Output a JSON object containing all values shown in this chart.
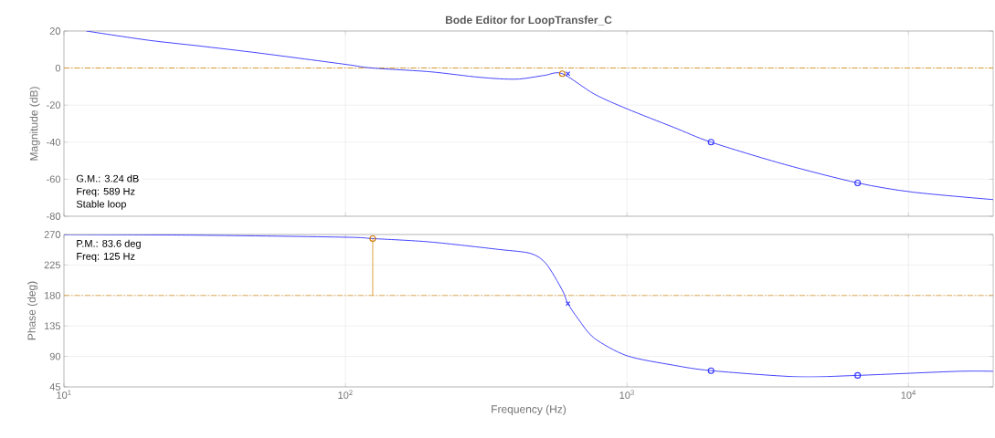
{
  "chart_data": [
    {
      "type": "line",
      "title": "Bode Editor for LoopTransfer_C",
      "ylabel": "Magnitude (dB)",
      "log": "x",
      "grid": true,
      "tick_labels": "y",
      "xlim": [
        10,
        20000
      ],
      "xticks": [
        {
          "value": 10,
          "label": null
        },
        {
          "value": 100,
          "label": null
        },
        {
          "value": 1000,
          "label": null
        },
        {
          "value": 10000,
          "label": null
        }
      ],
      "ylim": [
        -80,
        20
      ],
      "yticks": [
        -80,
        -60,
        -40,
        -20,
        0,
        20
      ],
      "series": [
        {
          "color": "#3030ff",
          "marker": "none",
          "x": [
            12,
            20,
            30,
            50,
            100,
            125,
            200,
            300,
            404,
            507,
            589,
            765,
            1000,
            1466,
            1990,
            3630,
            6600,
            10400,
            20000
          ],
          "values": [
            20,
            15,
            12,
            8,
            2,
            0,
            -2,
            -5,
            -6,
            -4,
            -3,
            -14,
            -22,
            -32,
            -40,
            -52,
            -62,
            -67,
            -71
          ]
        },
        {
          "type": "scatter",
          "color": "#3030ff",
          "marker": "circle",
          "x": [
            1990,
            6600
          ],
          "values": [
            -40,
            -62
          ]
        },
        {
          "type": "scatter",
          "color": "#3030ff",
          "marker": "cross",
          "x": [
            617
          ],
          "values": [
            -3
          ]
        },
        {
          "type": "scatter",
          "color": "#cc7a00",
          "marker": "circle",
          "x": [
            589
          ],
          "values": [
            -3
          ]
        }
      ],
      "ref_lines": [
        {
          "axis": "y",
          "value": 0,
          "color": "#d99a30",
          "line_style": "dashdot"
        }
      ],
      "annotations": [
        "G.M.: 3.24 dB",
        "Freq: 589 Hz",
        "Stable loop"
      ]
    },
    {
      "type": "line",
      "xlabel": "Frequency (Hz)",
      "ylabel": "Phase (deg)",
      "log": "x",
      "grid": true,
      "xlim": [
        10,
        20000
      ],
      "xticks": [
        {
          "value": 10,
          "label": "10$^{1}$"
        },
        {
          "value": 100,
          "label": "10$^{2}$"
        },
        {
          "value": 1000,
          "label": "10$^{3}$"
        },
        {
          "value": 10000,
          "label": "10$^{4}$"
        }
      ],
      "ylim": [
        45,
        270
      ],
      "yticks": [
        45,
        90,
        135,
        180,
        225,
        270
      ],
      "series": [
        {
          "color": "#3030ff",
          "marker": "none",
          "x": [
            10,
            30,
            100,
            125,
            200,
            350,
            455,
            516,
            589,
            617,
            672,
            765,
            1000,
            1466,
            1990,
            4000,
            6600,
            15000,
            20000
          ],
          "values": [
            270,
            269,
            266,
            264,
            259,
            248,
            242,
            227,
            188,
            168,
            145,
            117,
            91,
            77,
            69,
            60,
            62,
            68,
            68
          ]
        },
        {
          "type": "scatter",
          "color": "#3030ff",
          "marker": "circle",
          "x": [
            1990,
            6600
          ],
          "values": [
            69,
            62
          ]
        },
        {
          "type": "scatter",
          "color": "#3030ff",
          "marker": "cross",
          "x": [
            617
          ],
          "values": [
            168
          ]
        },
        {
          "color": "#d99a30",
          "marker": "none",
          "x": [
            125,
            125
          ],
          "values": [
            180,
            264
          ]
        },
        {
          "type": "scatter",
          "color": "#cc7a00",
          "marker": "circle",
          "x": [
            125
          ],
          "values": [
            264
          ]
        }
      ],
      "ref_lines": [
        {
          "axis": "y",
          "value": 180,
          "color": "#d99a30",
          "line_style": "dashdot"
        }
      ],
      "annotations": [
        "P.M.: 83.6 deg",
        "Freq: 125 Hz"
      ]
    }
  ]
}
